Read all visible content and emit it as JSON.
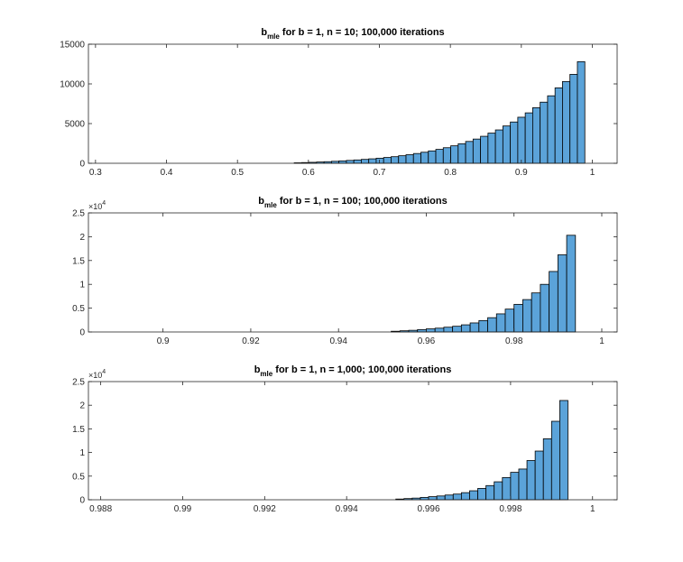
{
  "figure": {
    "background": "#ffffff",
    "axes_color": "#262626",
    "bar_fill": "#5ba3d9",
    "bar_edge": "#000000"
  },
  "chart_data": [
    {
      "type": "bar",
      "title_main": "b",
      "title_sub": "mle",
      "title_rest": " for b = 1, n = 10; 100,000 iterations",
      "xlim": [
        0.29,
        1.035
      ],
      "ylim": [
        0,
        15000
      ],
      "xticks": [
        0.3,
        0.4,
        0.5,
        0.6,
        0.7,
        0.8,
        0.9,
        1
      ],
      "xtick_labels": [
        "0.3",
        "0.4",
        "0.5",
        "0.6",
        "0.7",
        "0.8",
        "0.9",
        "1"
      ],
      "yticks": [
        0,
        5000,
        10000,
        15000
      ],
      "ytick_labels": [
        "0",
        "5000",
        "10000",
        "15000"
      ],
      "exponent_label": "",
      "bin_edges_start": 0.58,
      "bin_width": 0.0105,
      "counts": [
        60,
        90,
        120,
        160,
        200,
        250,
        300,
        360,
        420,
        490,
        560,
        640,
        730,
        830,
        950,
        1080,
        1230,
        1390,
        1560,
        1750,
        1960,
        2200,
        2460,
        2750,
        3050,
        3400,
        3800,
        4200,
        4700,
        5200,
        5800,
        6350,
        7000,
        7700,
        8500,
        9500,
        10300,
        11200,
        12800
      ]
    },
    {
      "type": "bar",
      "title_main": "b",
      "title_sub": "mle",
      "title_rest": " for b = 1, n = 100; 100,000 iterations",
      "xlim": [
        0.883,
        1.0035
      ],
      "ylim": [
        0,
        25000
      ],
      "xticks": [
        0.9,
        0.92,
        0.94,
        0.96,
        0.98,
        1
      ],
      "xtick_labels": [
        "0.9",
        "0.92",
        "0.94",
        "0.96",
        "0.98",
        "1"
      ],
      "yticks": [
        0,
        5000,
        10000,
        15000,
        20000,
        25000
      ],
      "ytick_labels": [
        "0",
        "0.5",
        "1",
        "1.5",
        "2",
        "2.5"
      ],
      "exponent_base": "×10",
      "exponent_power": "4",
      "bin_edges_start": 0.952,
      "bin_width": 0.002,
      "counts": [
        150,
        250,
        350,
        500,
        650,
        800,
        1000,
        1200,
        1500,
        1900,
        2400,
        3000,
        3800,
        4800,
        5800,
        6800,
        8200,
        10000,
        12700,
        16200,
        20300
      ]
    },
    {
      "type": "bar",
      "title_main": "b",
      "title_sub": "mle",
      "title_rest": " for b = 1, n = 1,000; 100,000 iterations",
      "xlim": [
        0.9877,
        1.0006
      ],
      "ylim": [
        0,
        25000
      ],
      "xticks": [
        0.988,
        0.99,
        0.992,
        0.994,
        0.996,
        0.998,
        1
      ],
      "xtick_labels": [
        "0.988",
        "0.99",
        "0.992",
        "0.994",
        "0.996",
        "0.998",
        "1"
      ],
      "yticks": [
        0,
        5000,
        10000,
        15000,
        20000,
        25000
      ],
      "ytick_labels": [
        "0",
        "0.5",
        "1",
        "1.5",
        "2",
        "2.5"
      ],
      "exponent_base": "×10",
      "exponent_power": "4",
      "bin_edges_start": 0.9952,
      "bin_width": 0.0002,
      "counts": [
        150,
        250,
        350,
        500,
        650,
        800,
        1000,
        1200,
        1500,
        1900,
        2400,
        3000,
        3800,
        4700,
        5800,
        6500,
        8300,
        10300,
        12900,
        16600,
        21000
      ]
    }
  ]
}
